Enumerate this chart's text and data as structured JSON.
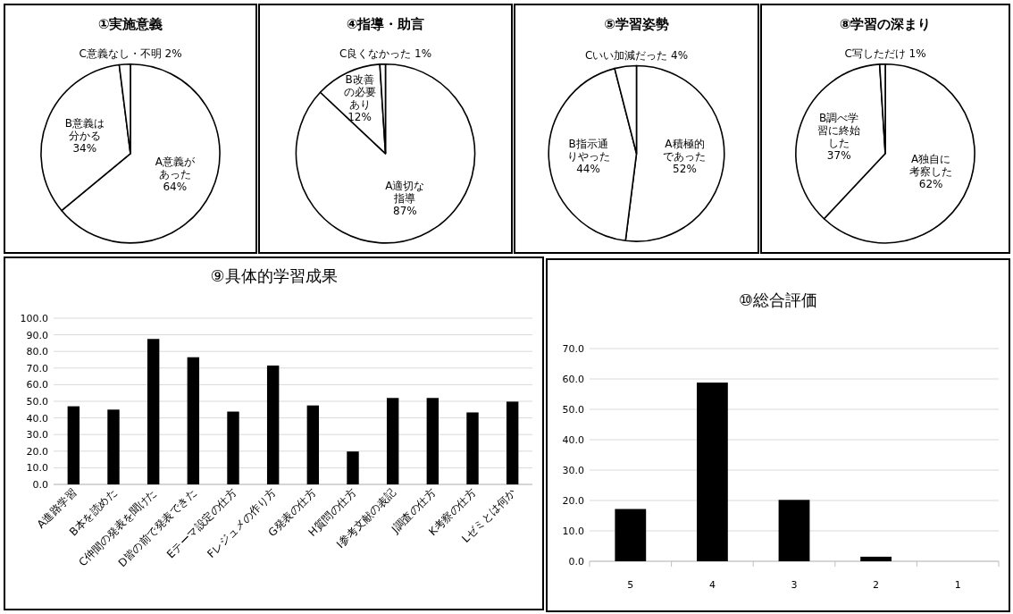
{
  "chart_data": [
    {
      "type": "pie",
      "title": "①実施意義",
      "categories": [
        "A意義があった",
        "B意義は分かる",
        "C意義なし・不明"
      ],
      "values": [
        64,
        34,
        2
      ],
      "value_labels": [
        "64%",
        "34%",
        "2%"
      ],
      "colors": [
        "#ffffff",
        "#ffffff",
        "#ffffff"
      ]
    },
    {
      "type": "pie",
      "title": "④指導・助言",
      "categories": [
        "A適切な指導",
        "B改善の必要あり",
        "C良くなかった"
      ],
      "values": [
        87,
        12,
        1
      ],
      "value_labels": [
        "87%",
        "12%",
        "1%"
      ],
      "colors": [
        "#ffffff",
        "#ffffff",
        "#ffffff"
      ]
    },
    {
      "type": "pie",
      "title": "⑤学習姿勢",
      "categories": [
        "A積極的であった",
        "B指示通りやった",
        "Cいい加減だった"
      ],
      "values": [
        52,
        44,
        4
      ],
      "value_labels": [
        "52%",
        "44%",
        "4%"
      ],
      "colors": [
        "#ffffff",
        "#ffffff",
        "#ffffff"
      ]
    },
    {
      "type": "pie",
      "title": "⑧学習の深まり",
      "categories": [
        "A独自に考察した",
        "B調べ学習に終始した",
        "C写しただけ"
      ],
      "values": [
        62,
        37,
        1
      ],
      "value_labels": [
        "62%",
        "37%",
        "1%"
      ],
      "colors": [
        "#ffffff",
        "#ffffff",
        "#ffffff"
      ]
    },
    {
      "type": "bar",
      "title": "⑨具体的学習成果",
      "categories": [
        "A進路学習",
        "B本を読めた",
        "C仲間の発表を聞けた",
        "D皆の前で発表できた",
        "Eテーマ設定の仕方",
        "Fレジュメの作り方",
        "G発表の仕方",
        "H質問の仕方",
        "I参考文献の表記",
        "J調査の仕方",
        "K考察の仕方",
        "Lゼミとは何か"
      ],
      "values": [
        47,
        45,
        87.5,
        76.5,
        43.8,
        71.5,
        47.5,
        19.8,
        52,
        52,
        43.3,
        49.8
      ],
      "color": "#000000",
      "ylim": [
        0,
        100
      ],
      "yticks": [
        {
          "value": 0,
          "label": "0.0"
        },
        {
          "value": 10,
          "label": "10.0"
        },
        {
          "value": 20,
          "label": "20.0"
        },
        {
          "value": 30,
          "label": "30.0"
        },
        {
          "value": 40,
          "label": "40.0"
        },
        {
          "value": 50,
          "label": "50.0"
        },
        {
          "value": 60,
          "label": "60.0"
        },
        {
          "value": 70,
          "label": "70.0"
        },
        {
          "value": 80,
          "label": "80.0"
        },
        {
          "value": 90,
          "label": "90.0"
        },
        {
          "value": 100,
          "label": "100.0"
        }
      ],
      "grid": "y"
    },
    {
      "type": "bar",
      "title": "⑩総合評価",
      "categories": [
        "5",
        "4",
        "3",
        "2",
        "1"
      ],
      "values": [
        17.2,
        58.8,
        20.2,
        1.5,
        0
      ],
      "color": "#000000",
      "ylim": [
        0,
        70
      ],
      "yticks": [
        {
          "value": 0,
          "label": "0.0"
        },
        {
          "value": 10,
          "label": "10.0"
        },
        {
          "value": 20,
          "label": "20.0"
        },
        {
          "value": 30,
          "label": "30.0"
        },
        {
          "value": 40,
          "label": "40.0"
        },
        {
          "value": 50,
          "label": "50.0"
        },
        {
          "value": 60,
          "label": "60.0"
        },
        {
          "value": 70,
          "label": "70.0"
        }
      ],
      "grid": "y"
    }
  ]
}
